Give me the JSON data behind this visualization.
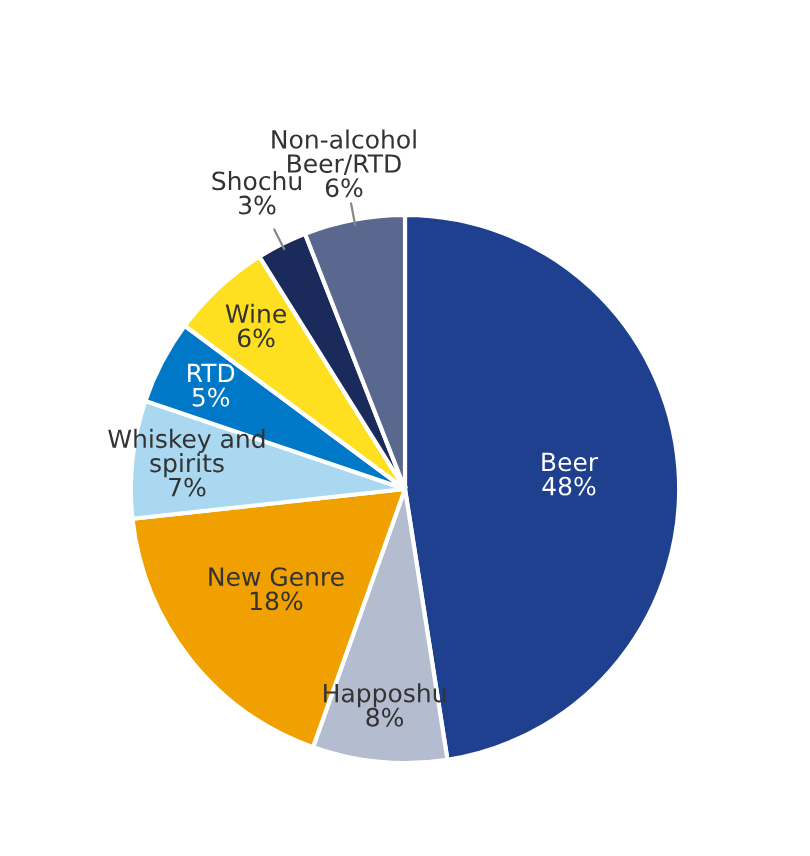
{
  "chart_data": {
    "type": "pie",
    "categories": [
      "Beer",
      "Happoshu",
      "New Genre",
      "Whiskey and spirits",
      "RTD",
      "Wine",
      "Shochu",
      "Non-alcohol Beer/RTD"
    ],
    "values": [
      48,
      8,
      18,
      7,
      5,
      6,
      3,
      6
    ],
    "colors": [
      "#1f3f8f",
      "#b4bccf",
      "#f0a000",
      "#a9d8f0",
      "#0078c8",
      "#ffe020",
      "#1a2a5a",
      "#5a6890"
    ],
    "value_labels": [
      "48%",
      "8%",
      "18%",
      "7%",
      "5%",
      "6%",
      "3%",
      "6%"
    ]
  }
}
